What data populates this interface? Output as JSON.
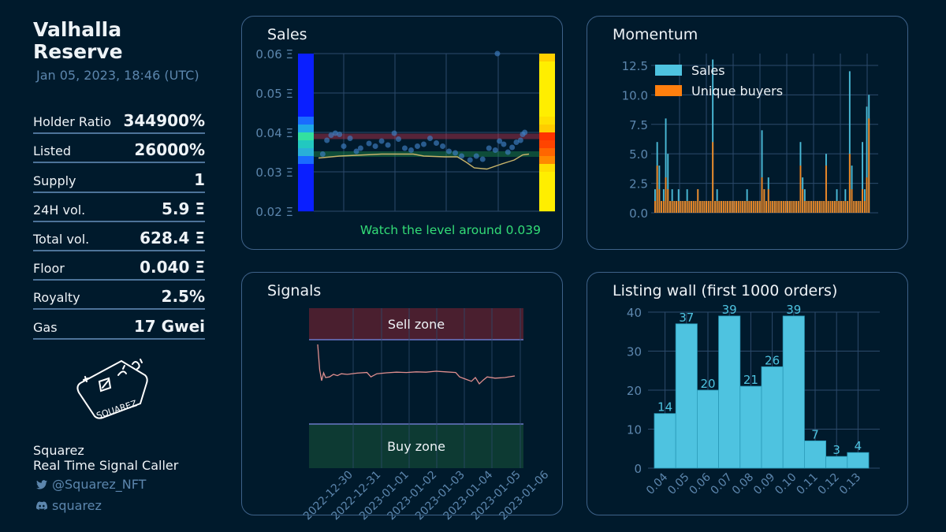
{
  "sidebar": {
    "title_line1": "Valhalla",
    "title_line2": "Reserve",
    "date": "Jan 05, 2023, 18:46 (UTC)",
    "stats": [
      {
        "label": "Holder Ratio",
        "value": "344900%"
      },
      {
        "label": "Listed",
        "value": "26000%"
      },
      {
        "label": "Supply",
        "value": "1"
      },
      {
        "label": "24H vol.",
        "value": "5.9 Ξ"
      },
      {
        "label": "Total vol.",
        "value": "628.4 Ξ"
      },
      {
        "label": "Floor",
        "value": "0.040 Ξ"
      },
      {
        "label": "Royalty",
        "value": "2.5%"
      },
      {
        "label": "Gas",
        "value": "17 Gwei"
      }
    ],
    "logo_text": "SQUAREZ",
    "brand_name": "Squarez",
    "brand_tagline": "Real Time Signal Caller",
    "twitter": "@Squarez_NFT",
    "discord": "squarez"
  },
  "colors": {
    "background": "#001a2c",
    "panel_border": "#3e6289",
    "axis_text": "#5c86ad",
    "sales_bar": "#4ec3e0",
    "buyers_bar": "#ff7f0e",
    "sell_zone": "#4a1f2f",
    "buy_zone": "#0d3a33",
    "signal_line": "#e08e8e",
    "callout": "#33dd77"
  },
  "chart_data": [
    {
      "type": "scatter",
      "title": "Sales",
      "ylabel": "Ξ",
      "ylim": [
        0.02,
        0.06
      ],
      "yticks": [
        "0.02 Ξ",
        "0.03 Ξ",
        "0.04 Ξ",
        "0.05 Ξ",
        "0.06 Ξ"
      ],
      "price_levels": [
        0.039,
        0.0345
      ],
      "annotation": "Watch the level around 0.039",
      "sales_points": [
        [
          0.02,
          0.0345
        ],
        [
          0.04,
          0.038
        ],
        [
          0.06,
          0.0393
        ],
        [
          0.08,
          0.0398
        ],
        [
          0.1,
          0.0395
        ],
        [
          0.12,
          0.0365
        ],
        [
          0.15,
          0.0385
        ],
        [
          0.18,
          0.0352
        ],
        [
          0.2,
          0.036
        ],
        [
          0.24,
          0.0372
        ],
        [
          0.27,
          0.0365
        ],
        [
          0.3,
          0.0378
        ],
        [
          0.33,
          0.0368
        ],
        [
          0.36,
          0.0398
        ],
        [
          0.38,
          0.0383
        ],
        [
          0.41,
          0.036
        ],
        [
          0.44,
          0.0355
        ],
        [
          0.47,
          0.0365
        ],
        [
          0.5,
          0.037
        ],
        [
          0.53,
          0.0385
        ],
        [
          0.56,
          0.0373
        ],
        [
          0.59,
          0.0365
        ],
        [
          0.62,
          0.0352
        ],
        [
          0.65,
          0.0348
        ],
        [
          0.68,
          0.034
        ],
        [
          0.72,
          0.033
        ],
        [
          0.75,
          0.034
        ],
        [
          0.78,
          0.0332
        ],
        [
          0.81,
          0.036
        ],
        [
          0.84,
          0.0355
        ],
        [
          0.86,
          0.0378
        ],
        [
          0.88,
          0.037
        ],
        [
          0.9,
          0.035
        ],
        [
          0.92,
          0.0362
        ],
        [
          0.94,
          0.0375
        ],
        [
          0.96,
          0.038
        ],
        [
          0.97,
          0.0395
        ],
        [
          0.98,
          0.04
        ],
        [
          0.85,
          0.06
        ]
      ],
      "floor_line": [
        [
          0.0,
          0.0335
        ],
        [
          0.1,
          0.034
        ],
        [
          0.3,
          0.0345
        ],
        [
          0.45,
          0.0345
        ],
        [
          0.5,
          0.034
        ],
        [
          0.6,
          0.0338
        ],
        [
          0.66,
          0.0338
        ],
        [
          0.7,
          0.0325
        ],
        [
          0.74,
          0.031
        ],
        [
          0.8,
          0.0307
        ],
        [
          0.86,
          0.0318
        ],
        [
          0.9,
          0.0325
        ],
        [
          0.93,
          0.033
        ],
        [
          0.97,
          0.0343
        ],
        [
          1.0,
          0.0345
        ]
      ]
    },
    {
      "type": "bar",
      "title": "Momentum",
      "ylim": [
        0,
        13.5
      ],
      "yticks": [
        "0.0",
        "2.5",
        "5.0",
        "7.5",
        "10.0",
        "12.5"
      ],
      "legend": [
        "Sales",
        "Unique buyers"
      ],
      "series": [
        {
          "name": "Sales",
          "values": [
            2,
            6,
            4,
            1,
            2,
            8,
            5,
            1,
            2,
            1,
            1,
            2,
            1,
            1,
            1,
            2,
            1,
            1,
            1,
            1,
            2,
            1,
            1,
            1,
            1,
            1,
            1,
            13,
            1,
            2,
            1,
            1,
            1,
            1,
            1,
            1,
            1,
            1,
            1,
            1,
            1,
            1,
            1,
            2,
            1,
            1,
            1,
            1,
            1,
            1,
            7,
            2,
            1,
            3,
            1,
            1,
            1,
            1,
            1,
            1,
            1,
            1,
            1,
            1,
            1,
            1,
            1,
            1,
            6,
            3,
            2,
            1,
            1,
            1,
            1,
            1,
            1,
            1,
            1,
            1,
            5,
            1,
            1,
            1,
            1,
            2,
            1,
            1,
            1,
            2,
            1,
            12,
            4,
            1,
            1,
            1,
            1,
            6,
            2,
            9,
            10
          ]
        },
        {
          "name": "Unique buyers",
          "values": [
            1,
            4,
            2,
            1,
            1,
            3,
            2,
            1,
            1,
            1,
            1,
            1,
            1,
            1,
            1,
            1,
            1,
            1,
            1,
            1,
            2,
            1,
            1,
            1,
            1,
            1,
            1,
            6,
            1,
            1,
            1,
            1,
            1,
            1,
            1,
            1,
            1,
            1,
            1,
            1,
            1,
            1,
            1,
            1,
            1,
            1,
            1,
            1,
            1,
            1,
            3,
            2,
            1,
            2,
            1,
            1,
            1,
            1,
            1,
            1,
            1,
            1,
            1,
            1,
            1,
            1,
            1,
            1,
            4,
            2,
            1,
            1,
            1,
            1,
            1,
            1,
            1,
            1,
            1,
            1,
            4,
            1,
            1,
            1,
            1,
            1,
            1,
            1,
            1,
            1,
            1,
            5,
            2,
            1,
            1,
            1,
            1,
            2,
            1,
            3,
            8
          ]
        }
      ]
    },
    {
      "type": "line",
      "title": "Signals",
      "zones": [
        "Sell zone",
        "Buy zone"
      ],
      "x_labels": [
        "2022-12-30",
        "2022-12-31",
        "2023-01-01",
        "2023-01-02",
        "2023-01-03",
        "2023-01-04",
        "2023-01-05",
        "2023-01-06"
      ],
      "signal": [
        [
          0.0,
          0.95
        ],
        [
          0.01,
          0.15
        ],
        [
          0.02,
          0.5
        ],
        [
          0.03,
          0.25
        ],
        [
          0.04,
          0.4
        ],
        [
          0.06,
          0.38
        ],
        [
          0.08,
          0.3
        ],
        [
          0.1,
          0.34
        ],
        [
          0.12,
          0.28
        ],
        [
          0.15,
          0.3
        ],
        [
          0.2,
          0.26
        ],
        [
          0.25,
          0.24
        ],
        [
          0.27,
          0.38
        ],
        [
          0.3,
          0.28
        ],
        [
          0.35,
          0.25
        ],
        [
          0.4,
          0.23
        ],
        [
          0.45,
          0.24
        ],
        [
          0.5,
          0.22
        ],
        [
          0.55,
          0.23
        ],
        [
          0.6,
          0.2
        ],
        [
          0.65,
          0.22
        ],
        [
          0.7,
          0.24
        ],
        [
          0.72,
          0.38
        ],
        [
          0.75,
          0.45
        ],
        [
          0.78,
          0.52
        ],
        [
          0.8,
          0.4
        ],
        [
          0.82,
          0.6
        ],
        [
          0.84,
          0.48
        ],
        [
          0.86,
          0.38
        ],
        [
          0.9,
          0.42
        ],
        [
          0.95,
          0.4
        ],
        [
          1.0,
          0.35
        ]
      ]
    },
    {
      "type": "bar",
      "title": "Listing wall (first 1000 orders)",
      "ylim": [
        0,
        40
      ],
      "yticks": [
        "0",
        "10",
        "20",
        "30",
        "40"
      ],
      "categories": [
        "0.04",
        "0.05",
        "0.06",
        "0.07",
        "0.08",
        "0.09",
        "0.10",
        "0.11",
        "0.12",
        "0.13"
      ],
      "values": [
        14,
        37,
        20,
        39,
        21,
        26,
        39,
        7,
        3,
        4
      ]
    }
  ]
}
